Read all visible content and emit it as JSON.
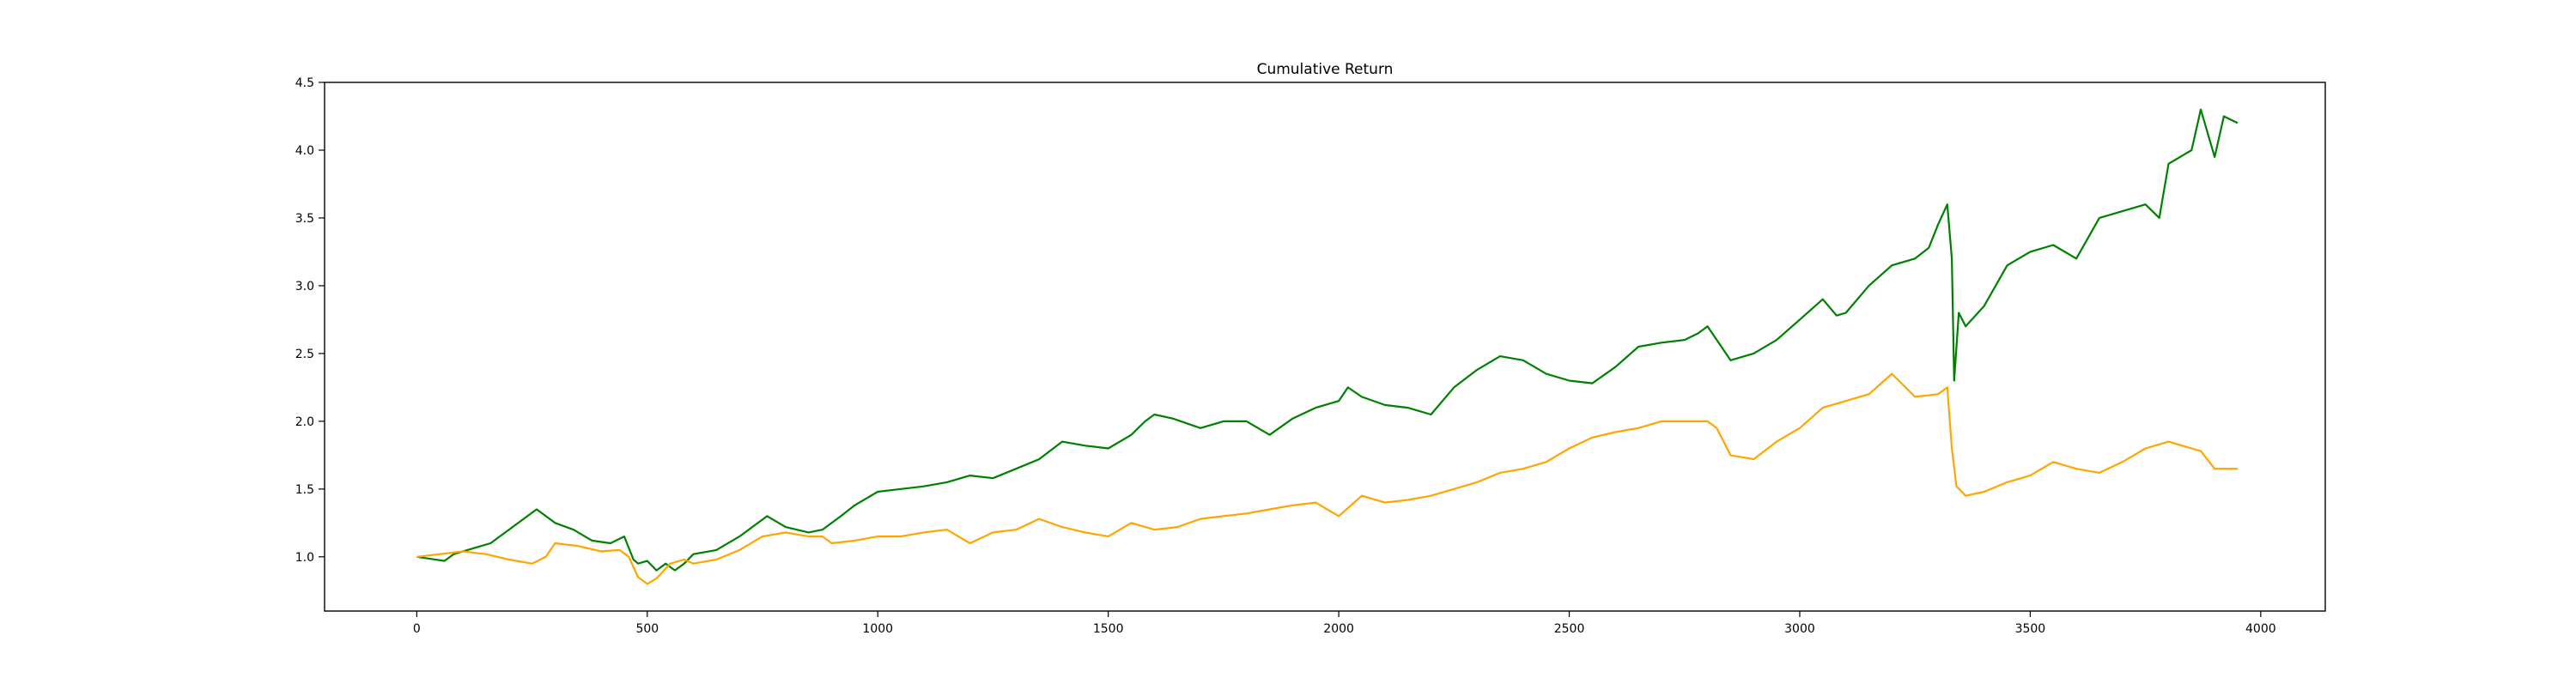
{
  "chart_data": {
    "type": "line",
    "title": "Cumulative Return",
    "xlabel": "",
    "ylabel": "",
    "xlim": [
      -200,
      4140
    ],
    "ylim": [
      0.6,
      4.5
    ],
    "xticks": [
      0,
      500,
      1000,
      1500,
      2000,
      2500,
      3000,
      3500,
      4000
    ],
    "yticks": [
      1.0,
      1.5,
      2.0,
      2.5,
      3.0,
      3.5,
      4.0,
      4.5
    ],
    "xtick_labels": [
      "0",
      "500",
      "1000",
      "1500",
      "2000",
      "2500",
      "3000",
      "3500",
      "4000"
    ],
    "ytick_labels": [
      "1.0",
      "1.5",
      "2.0",
      "2.5",
      "3.0",
      "3.5",
      "4.0",
      "4.5"
    ],
    "grid": false,
    "legend": "none",
    "series": [
      {
        "color": "#008000",
        "x": [
          0,
          60,
          80,
          120,
          160,
          200,
          240,
          260,
          280,
          300,
          340,
          380,
          420,
          450,
          470,
          480,
          500,
          520,
          540,
          560,
          580,
          600,
          650,
          700,
          760,
          800,
          850,
          880,
          920,
          950,
          1000,
          1050,
          1100,
          1150,
          1200,
          1250,
          1300,
          1350,
          1400,
          1450,
          1500,
          1550,
          1580,
          1600,
          1640,
          1700,
          1750,
          1800,
          1850,
          1900,
          1950,
          2000,
          2020,
          2050,
          2100,
          2150,
          2200,
          2250,
          2300,
          2350,
          2400,
          2450,
          2500,
          2550,
          2600,
          2650,
          2700,
          2750,
          2780,
          2800,
          2850,
          2900,
          2950,
          3000,
          3050,
          3080,
          3100,
          3150,
          3200,
          3250,
          3280,
          3300,
          3320,
          3330,
          3335,
          3345,
          3360,
          3400,
          3450,
          3500,
          3550,
          3600,
          3650,
          3700,
          3750,
          3780,
          3800,
          3850,
          3870,
          3900,
          3920,
          3950
        ],
        "y": [
          1.0,
          0.97,
          1.02,
          1.06,
          1.1,
          1.2,
          1.3,
          1.35,
          1.3,
          1.25,
          1.2,
          1.12,
          1.1,
          1.15,
          0.98,
          0.95,
          0.97,
          0.9,
          0.95,
          0.9,
          0.95,
          1.02,
          1.05,
          1.15,
          1.3,
          1.22,
          1.18,
          1.2,
          1.3,
          1.38,
          1.48,
          1.5,
          1.52,
          1.55,
          1.6,
          1.58,
          1.65,
          1.72,
          1.85,
          1.82,
          1.8,
          1.9,
          2.0,
          2.05,
          2.02,
          1.95,
          2.0,
          2.0,
          1.9,
          2.02,
          2.1,
          2.15,
          2.25,
          2.18,
          2.12,
          2.1,
          2.05,
          2.25,
          2.38,
          2.48,
          2.45,
          2.35,
          2.3,
          2.28,
          2.4,
          2.55,
          2.58,
          2.6,
          2.65,
          2.7,
          2.45,
          2.5,
          2.6,
          2.75,
          2.9,
          2.78,
          2.8,
          3.0,
          3.15,
          3.2,
          3.28,
          3.45,
          3.6,
          3.2,
          2.3,
          2.8,
          2.7,
          2.85,
          3.15,
          3.25,
          3.3,
          3.2,
          3.5,
          3.55,
          3.6,
          3.5,
          3.9,
          4.0,
          4.3,
          3.95,
          4.25,
          4.2
        ]
      },
      {
        "color": "#FFA500",
        "x": [
          0,
          50,
          100,
          150,
          200,
          250,
          280,
          300,
          350,
          400,
          440,
          460,
          480,
          500,
          520,
          550,
          580,
          600,
          650,
          700,
          750,
          800,
          850,
          880,
          900,
          950,
          1000,
          1050,
          1100,
          1150,
          1200,
          1250,
          1300,
          1350,
          1400,
          1450,
          1500,
          1550,
          1600,
          1650,
          1700,
          1750,
          1800,
          1850,
          1900,
          1950,
          2000,
          2050,
          2100,
          2150,
          2200,
          2250,
          2300,
          2350,
          2400,
          2450,
          2500,
          2550,
          2600,
          2650,
          2700,
          2750,
          2800,
          2820,
          2850,
          2900,
          2950,
          3000,
          3050,
          3100,
          3150,
          3200,
          3250,
          3300,
          3320,
          3330,
          3340,
          3360,
          3400,
          3450,
          3500,
          3550,
          3600,
          3650,
          3700,
          3750,
          3800,
          3850,
          3870,
          3900,
          3950
        ],
        "y": [
          1.0,
          1.02,
          1.04,
          1.02,
          0.98,
          0.95,
          1.0,
          1.1,
          1.08,
          1.04,
          1.05,
          1.0,
          0.85,
          0.8,
          0.84,
          0.95,
          0.98,
          0.95,
          0.98,
          1.05,
          1.15,
          1.18,
          1.15,
          1.15,
          1.1,
          1.12,
          1.15,
          1.15,
          1.18,
          1.2,
          1.1,
          1.18,
          1.2,
          1.28,
          1.22,
          1.18,
          1.15,
          1.25,
          1.2,
          1.22,
          1.28,
          1.3,
          1.32,
          1.35,
          1.38,
          1.4,
          1.3,
          1.45,
          1.4,
          1.42,
          1.45,
          1.5,
          1.55,
          1.62,
          1.65,
          1.7,
          1.8,
          1.88,
          1.92,
          1.95,
          2.0,
          2.0,
          2.0,
          1.95,
          1.75,
          1.72,
          1.85,
          1.95,
          2.1,
          2.15,
          2.2,
          2.35,
          2.18,
          2.2,
          2.25,
          1.8,
          1.52,
          1.45,
          1.48,
          1.55,
          1.6,
          1.7,
          1.65,
          1.62,
          1.7,
          1.8,
          1.85,
          1.8,
          1.78,
          1.65,
          1.65
        ]
      }
    ]
  }
}
